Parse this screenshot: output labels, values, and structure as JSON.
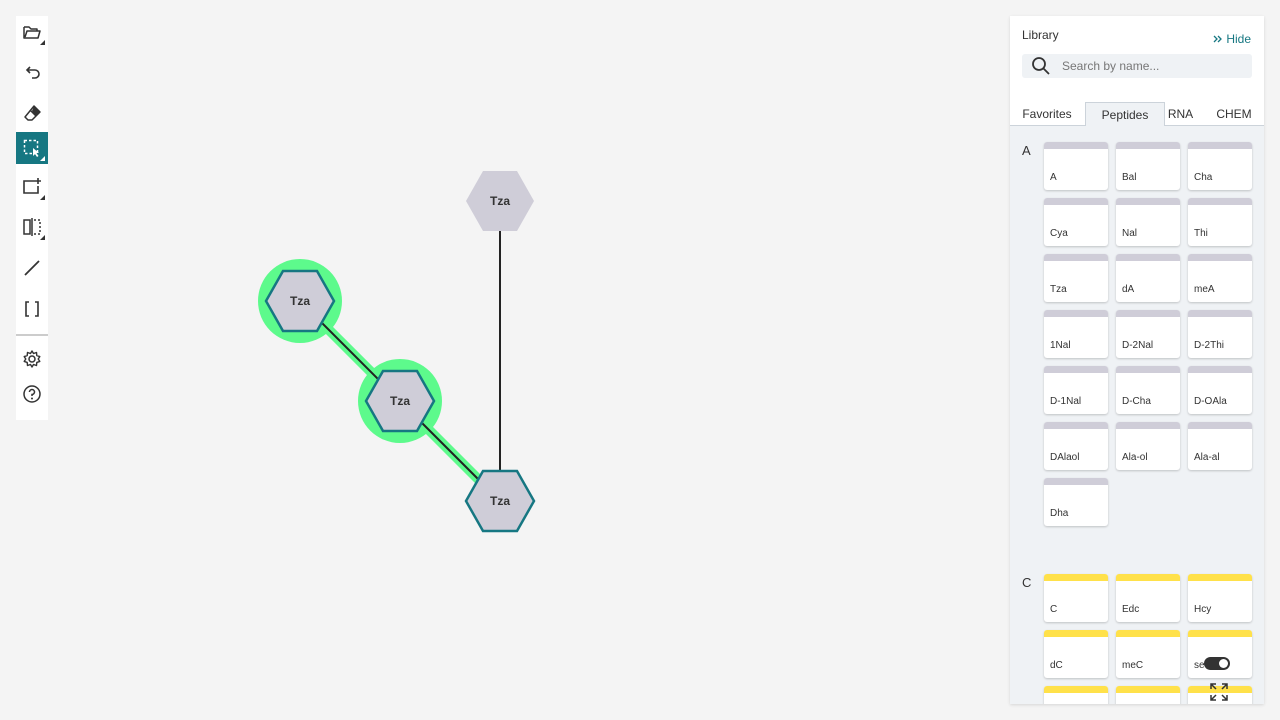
{
  "toolbar": {
    "tools": [
      {
        "name": "open-file-icon",
        "active": false
      },
      {
        "name": "undo-icon",
        "active": false
      },
      {
        "name": "eraser-icon",
        "active": false
      },
      {
        "name": "select-rectangle-icon",
        "active": true
      },
      {
        "name": "add-monomer-icon",
        "active": false
      },
      {
        "name": "mirror-icon",
        "active": false
      },
      {
        "name": "bond-icon",
        "active": false
      },
      {
        "name": "brackets-icon",
        "active": false
      },
      {
        "name": "settings-icon",
        "active": false
      },
      {
        "name": "help-icon",
        "active": false
      }
    ]
  },
  "canvas": {
    "monomers": [
      {
        "label": "Tza",
        "selected": false,
        "highlighted": false
      },
      {
        "label": "Tza",
        "selected": true,
        "highlighted": true
      },
      {
        "label": "Tza",
        "selected": true,
        "highlighted": true
      },
      {
        "label": "Tza",
        "selected": true,
        "highlighted": false
      }
    ],
    "colors": {
      "highlight": "#5dfa8c",
      "selection_outline": "#167782",
      "monomer_fill": "#cfcdd8"
    }
  },
  "library": {
    "title": "Library",
    "hide_label": "Hide",
    "search": {
      "placeholder": "Search by name...",
      "value": ""
    },
    "tabs": [
      {
        "label": "Favorites",
        "active": false
      },
      {
        "label": "Peptides",
        "active": true
      },
      {
        "label": "RNA",
        "active": false
      },
      {
        "label": "CHEM",
        "active": false
      }
    ],
    "groups": [
      {
        "letter": "A",
        "band_color": "#cfcdd8",
        "items": [
          "A",
          "Bal",
          "Cha",
          "Cya",
          "Nal",
          "Thi",
          "Tza",
          "dA",
          "meA",
          "1Nal",
          "D-2Nal",
          "D-2Thi",
          "D-1Nal",
          "D-Cha",
          "D-OAla",
          "DAlaol",
          "Ala-ol",
          "Ala-al",
          "Dha"
        ]
      },
      {
        "letter": "C",
        "band_color": "#ffe14a",
        "items": [
          "C",
          "Edc",
          "Hcy",
          "dC",
          "meC",
          "se",
          "",
          "",
          ""
        ]
      }
    ],
    "colors": {
      "accent": "#167782",
      "panel_bg": "#eff2f5"
    }
  }
}
